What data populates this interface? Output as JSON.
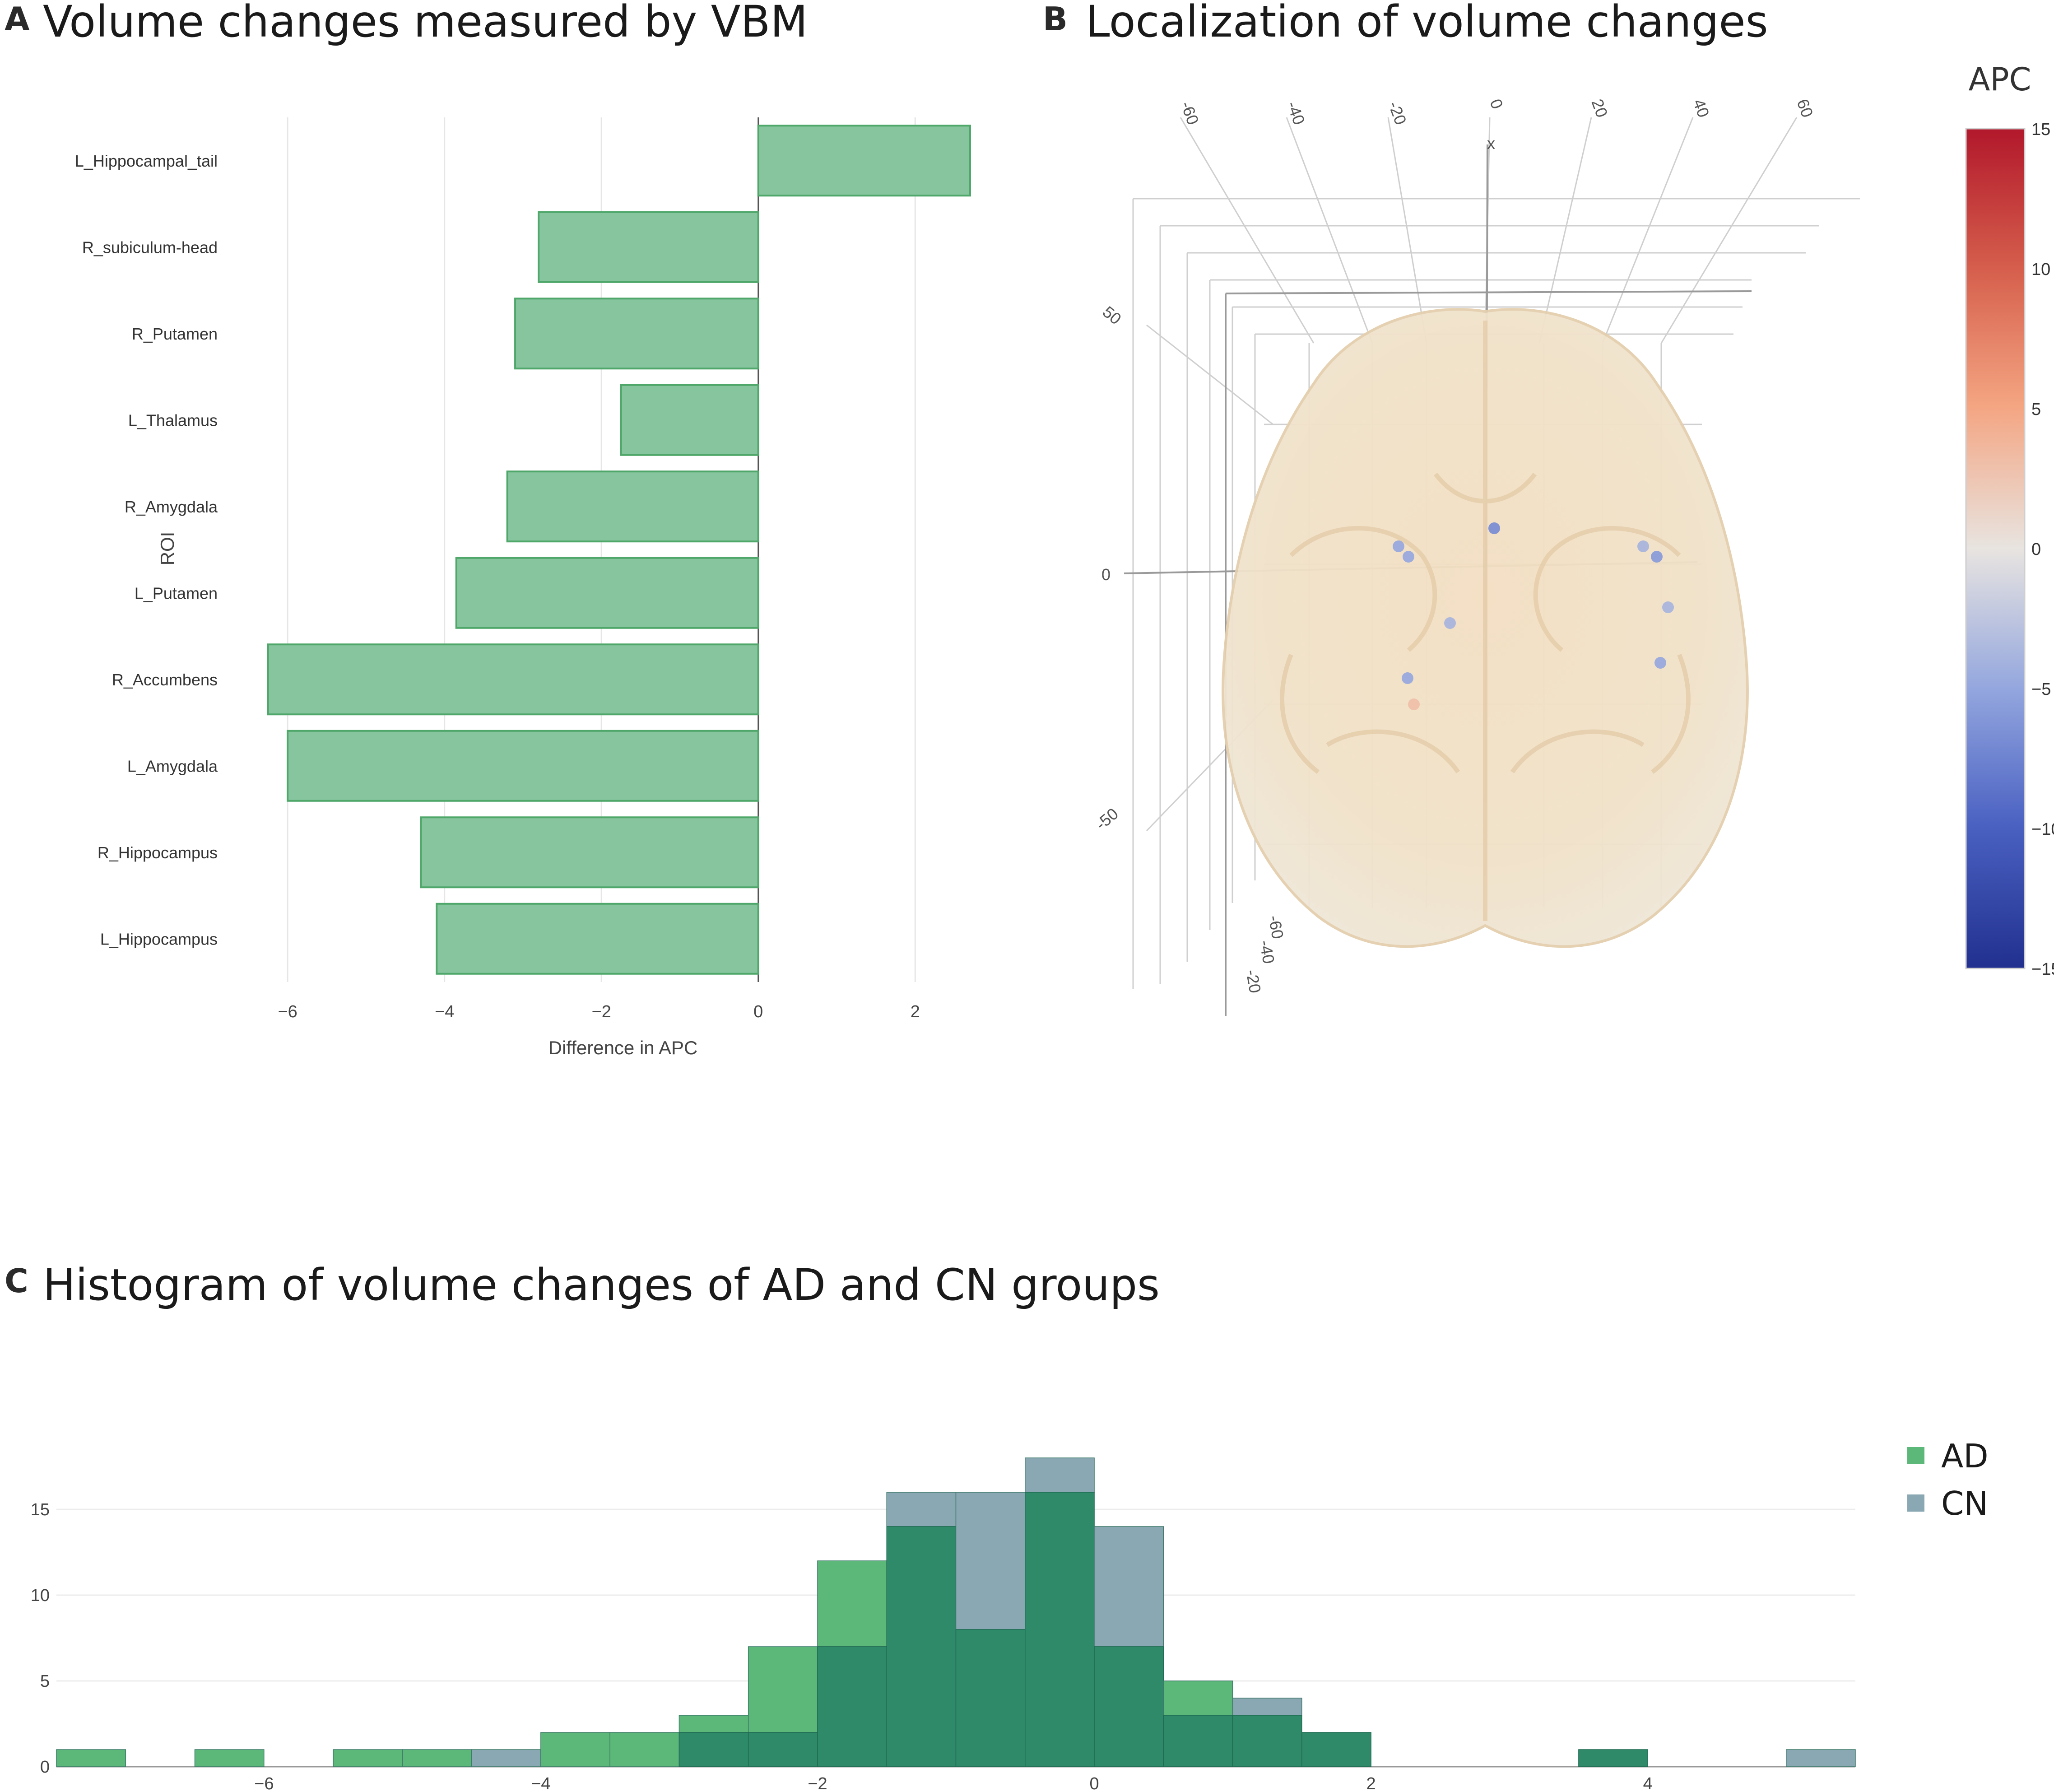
{
  "panels": {
    "a": {
      "letter": "A",
      "title": "Volume changes measured by VBM"
    },
    "b": {
      "letter": "B",
      "title": "Localization of volume changes"
    },
    "c": {
      "letter": "C",
      "title": "Histogram of volume changes of AD and CN groups"
    }
  },
  "colors": {
    "bar_fill": "#86c59e",
    "bar_stroke": "#4fa76a",
    "ad": "#5cb878",
    "cn": "#8aa8b4",
    "overlap": "#2f8a6a"
  },
  "chart_data": [
    {
      "type": "bar",
      "orientation": "horizontal",
      "title": "Volume changes measured by VBM",
      "xlabel": "Difference in APC",
      "ylabel": "ROI",
      "xlim": [
        -6.3,
        2.85
      ],
      "xticks": [
        "−6",
        "−4",
        "−2",
        "0",
        "2"
      ],
      "xtick_values": [
        -6,
        -4,
        -2,
        0,
        2
      ],
      "grid": true,
      "categories": [
        "L_Hippocampal_tail",
        "R_subiculum-head",
        "R_Putamen",
        "L_Thalamus",
        "R_Amygdala",
        "L_Putamen",
        "R_Accumbens",
        "L_Amygdala",
        "R_Hippocampus",
        "L_Hippocampus"
      ],
      "values": [
        2.7,
        -2.8,
        -3.1,
        -1.75,
        -3.2,
        -3.85,
        -6.25,
        -6.0,
        -4.3,
        -4.1
      ]
    },
    {
      "type": "scatter",
      "title": "Localization of volume changes",
      "colorbar_label": "APC",
      "colorbar_range": [
        -15,
        15
      ],
      "colorbar_ticks": [
        "15",
        "10",
        "5",
        "0",
        "−5",
        "−10",
        "−15"
      ],
      "axis_labels": [
        "x"
      ],
      "axis_ticks_top": [
        "-60",
        "-40",
        "-20",
        "0",
        "20",
        "40",
        "60"
      ],
      "axis_ticks_left": [
        "50",
        "0",
        "-50"
      ],
      "axis_ticks_bottom": [
        "-60",
        "-40",
        "-20"
      ],
      "points_apc": [
        -7,
        -5,
        -5,
        -4,
        -6,
        -4,
        -4,
        -5,
        -5,
        3
      ]
    },
    {
      "type": "histogram",
      "title": "Histogram of volume changes of AD and CN groups",
      "xlim": [
        -7.5,
        5.5
      ],
      "ylim": [
        0,
        18.5
      ],
      "xticks": [
        "−6",
        "−4",
        "−2",
        "0",
        "2",
        "4"
      ],
      "xtick_values": [
        -6,
        -4,
        -2,
        0,
        2,
        4
      ],
      "yticks": [
        "0",
        "5",
        "10",
        "15"
      ],
      "ytick_values": [
        0,
        5,
        10,
        15
      ],
      "bin_width": 0.5,
      "bin_starts": [
        -7.5,
        -6.5,
        -5.5,
        -5.0,
        -4.5,
        -4.0,
        -3.5,
        -3.0,
        -2.5,
        -2.0,
        -1.5,
        -1.0,
        -0.5,
        0.0,
        0.5,
        1.0,
        1.5,
        3.5,
        5.0
      ],
      "legend_position": "top-right",
      "series": [
        {
          "name": "AD",
          "values": [
            1,
            1,
            1,
            1,
            0,
            2,
            2,
            3,
            7,
            12,
            14,
            8,
            16,
            7,
            5,
            3,
            2,
            1,
            0
          ]
        },
        {
          "name": "CN",
          "values": [
            0,
            0,
            0,
            0,
            1,
            0,
            0,
            2,
            2,
            7,
            16,
            16,
            18,
            14,
            3,
            4,
            2,
            1,
            1
          ]
        }
      ]
    }
  ]
}
